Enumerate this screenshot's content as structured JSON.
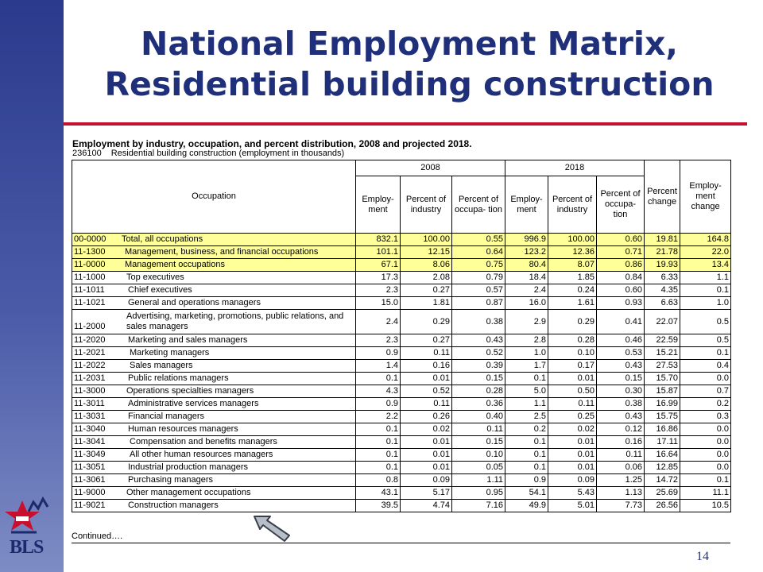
{
  "slide": {
    "title_line1": "National Employment Matrix,",
    "title_line2": "Residential building construction",
    "subtitle": "Employment by industry, occupation, and percent distribution, 2008 and projected 2018.",
    "industry_code": "236100",
    "industry_desc": "Residential building construction (employment in thousands)",
    "continued": "Continued….",
    "page_number": "14",
    "logo_text": "BLS"
  },
  "table": {
    "headers": {
      "occupation": "Occupation",
      "year1": "2008",
      "year2": "2018",
      "employment": "Employ- ment",
      "pct_industry": "Percent of industry",
      "pct_occupation_2008": "Percent of occupa- tion",
      "pct_occupation_2018": "Percent of occupa- tion",
      "pct_change": "Percent change",
      "emp_change": "Employ- ment change"
    },
    "rows": [
      {
        "code": "00-0000",
        "name": "Total, all occupations",
        "v": [
          "832.1",
          "100.00",
          "0.55",
          "996.9",
          "100.00",
          "0.60",
          "19.81",
          "164.8"
        ]
      },
      {
        "code": "11-1300",
        "name": "Management, business, and financial occupations",
        "v": [
          "101.1",
          "12.15",
          "0.64",
          "123.2",
          "12.36",
          "0.71",
          "21.78",
          "22.0"
        ]
      },
      {
        "code": "11-0000",
        "name": "Management occupations",
        "v": [
          "67.1",
          "8.06",
          "0.75",
          "80.4",
          "8.07",
          "0.86",
          "19.93",
          "13.4"
        ]
      },
      {
        "code": "11-1000",
        "name": "Top executives",
        "v": [
          "17.3",
          "2.08",
          "0.79",
          "18.4",
          "1.85",
          "0.84",
          "6.33",
          "1.1"
        ]
      },
      {
        "code": "11-1011",
        "name": "Chief executives",
        "v": [
          "2.3",
          "0.27",
          "0.57",
          "2.4",
          "0.24",
          "0.60",
          "4.35",
          "0.1"
        ]
      },
      {
        "code": "11-1021",
        "name": "General and operations managers",
        "v": [
          "15.0",
          "1.81",
          "0.87",
          "16.0",
          "1.61",
          "0.93",
          "6.63",
          "1.0"
        ]
      },
      {
        "code": "11-2000",
        "name": "Advertising, marketing, promotions, public relations, and sales managers",
        "v": [
          "2.4",
          "0.29",
          "0.38",
          "2.9",
          "0.29",
          "0.41",
          "22.07",
          "0.5"
        ]
      },
      {
        "code": "11-2020",
        "name": "Marketing and sales managers",
        "v": [
          "2.3",
          "0.27",
          "0.43",
          "2.8",
          "0.28",
          "0.46",
          "22.59",
          "0.5"
        ]
      },
      {
        "code": "11-2021",
        "name": "Marketing managers",
        "v": [
          "0.9",
          "0.11",
          "0.52",
          "1.0",
          "0.10",
          "0.53",
          "15.21",
          "0.1"
        ]
      },
      {
        "code": "11-2022",
        "name": "Sales managers",
        "v": [
          "1.4",
          "0.16",
          "0.39",
          "1.7",
          "0.17",
          "0.43",
          "27.53",
          "0.4"
        ]
      },
      {
        "code": "11-2031",
        "name": "Public relations managers",
        "v": [
          "0.1",
          "0.01",
          "0.15",
          "0.1",
          "0.01",
          "0.15",
          "15.70",
          "0.0"
        ]
      },
      {
        "code": "11-3000",
        "name": "Operations specialties managers",
        "v": [
          "4.3",
          "0.52",
          "0.28",
          "5.0",
          "0.50",
          "0.30",
          "15.87",
          "0.7"
        ]
      },
      {
        "code": "11-3011",
        "name": "Administrative services managers",
        "v": [
          "0.9",
          "0.11",
          "0.36",
          "1.1",
          "0.11",
          "0.38",
          "16.99",
          "0.2"
        ]
      },
      {
        "code": "11-3031",
        "name": "Financial managers",
        "v": [
          "2.2",
          "0.26",
          "0.40",
          "2.5",
          "0.25",
          "0.43",
          "15.75",
          "0.3"
        ]
      },
      {
        "code": "11-3040",
        "name": "Human resources managers",
        "v": [
          "0.1",
          "0.02",
          "0.11",
          "0.2",
          "0.02",
          "0.12",
          "16.86",
          "0.0"
        ]
      },
      {
        "code": "11-3041",
        "name": "Compensation and benefits managers",
        "v": [
          "0.1",
          "0.01",
          "0.15",
          "0.1",
          "0.01",
          "0.16",
          "17.11",
          "0.0"
        ]
      },
      {
        "code": "11-3049",
        "name": "All other human resources managers",
        "v": [
          "0.1",
          "0.01",
          "0.10",
          "0.1",
          "0.01",
          "0.11",
          "16.64",
          "0.0"
        ]
      },
      {
        "code": "11-3051",
        "name": "Industrial production managers",
        "v": [
          "0.1",
          "0.01",
          "0.05",
          "0.1",
          "0.01",
          "0.06",
          "12.85",
          "0.0"
        ]
      },
      {
        "code": "11-3061",
        "name": "Purchasing managers",
        "v": [
          "0.8",
          "0.09",
          "1.11",
          "0.9",
          "0.09",
          "1.25",
          "14.72",
          "0.1"
        ]
      },
      {
        "code": "11-9000",
        "name": "Other management occupations",
        "v": [
          "43.1",
          "5.17",
          "0.95",
          "54.1",
          "5.43",
          "1.13",
          "25.69",
          "11.1"
        ]
      },
      {
        "code": "11-9021",
        "name": "Construction managers",
        "v": [
          "39.5",
          "4.74",
          "7.16",
          "49.9",
          "5.01",
          "7.73",
          "26.56",
          "10.5"
        ]
      }
    ]
  }
}
